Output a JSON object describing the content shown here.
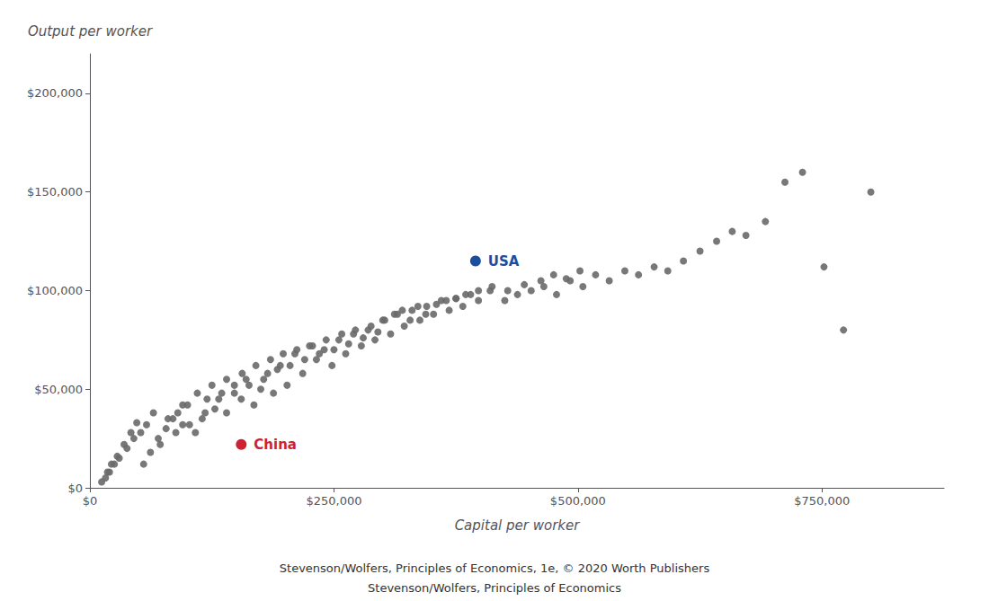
{
  "chart_data": {
    "type": "scatter",
    "xlabel": "Capital per worker",
    "ylabel": "Output per worker",
    "series": [
      {
        "color": "#696969",
        "x": [
          18000,
          22000,
          28000,
          35000,
          42000,
          48000,
          55000,
          62000,
          70000,
          78000,
          85000,
          90000,
          95000,
          100000,
          108000,
          115000,
          120000,
          128000,
          135000,
          140000,
          148000,
          155000,
          160000,
          168000,
          175000,
          182000,
          188000,
          195000,
          202000,
          210000,
          218000,
          225000,
          232000,
          240000,
          248000,
          255000,
          262000,
          270000,
          278000,
          285000,
          292000,
          300000,
          308000,
          315000,
          322000,
          330000,
          338000,
          345000,
          352000,
          360000,
          368000,
          375000,
          382000,
          390000,
          398000,
          410000,
          425000,
          438000,
          452000,
          465000,
          478000,
          492000,
          505000,
          518000,
          532000,
          548000,
          562000,
          578000,
          592000,
          608000,
          625000,
          642000,
          658000,
          672000,
          692000,
          712000,
          730000,
          752000,
          772000,
          800000,
          12000,
          16000,
          20000,
          25000,
          30000,
          38000,
          45000,
          52000,
          58000,
          65000,
          72000,
          80000,
          88000,
          95000,
          102000,
          110000,
          118000,
          125000,
          132000,
          140000,
          148000,
          156000,
          163000,
          170000,
          178000,
          185000,
          192000,
          198000,
          205000,
          212000,
          220000,
          228000,
          235000,
          242000,
          250000,
          258000,
          265000,
          272000,
          280000,
          288000,
          295000,
          302000,
          312000,
          320000,
          328000,
          336000,
          344000,
          355000,
          365000,
          375000,
          385000,
          398000,
          412000,
          428000,
          445000,
          462000,
          475000,
          488000,
          502000
        ],
        "y": [
          8000,
          12000,
          16000,
          22000,
          28000,
          33000,
          12000,
          18000,
          25000,
          30000,
          35000,
          38000,
          32000,
          42000,
          28000,
          35000,
          45000,
          40000,
          48000,
          38000,
          52000,
          45000,
          55000,
          42000,
          50000,
          58000,
          48000,
          62000,
          52000,
          68000,
          58000,
          72000,
          65000,
          70000,
          62000,
          75000,
          68000,
          78000,
          72000,
          80000,
          75000,
          85000,
          78000,
          88000,
          82000,
          90000,
          85000,
          92000,
          88000,
          95000,
          90000,
          96000,
          92000,
          98000,
          95000,
          100000,
          95000,
          98000,
          100000,
          102000,
          98000,
          105000,
          102000,
          108000,
          105000,
          110000,
          108000,
          112000,
          110000,
          115000,
          120000,
          125000,
          130000,
          128000,
          135000,
          155000,
          160000,
          112000,
          80000,
          150000,
          3000,
          5000,
          8000,
          12000,
          15000,
          20000,
          25000,
          28000,
          32000,
          38000,
          22000,
          35000,
          28000,
          42000,
          32000,
          48000,
          38000,
          52000,
          45000,
          55000,
          48000,
          58000,
          52000,
          62000,
          55000,
          65000,
          60000,
          68000,
          62000,
          70000,
          65000,
          72000,
          68000,
          75000,
          70000,
          78000,
          73000,
          80000,
          76000,
          82000,
          79000,
          85000,
          88000,
          90000,
          85000,
          92000,
          88000,
          93000,
          95000,
          96000,
          98000,
          100000,
          102000,
          100000,
          103000,
          105000,
          108000,
          106000,
          110000
        ]
      },
      {
        "name": "USA",
        "color": "#1a4fa0",
        "x": [
          395000
        ],
        "y": [
          115000
        ]
      },
      {
        "name": "China",
        "color": "#cc2233",
        "x": [
          155000
        ],
        "y": [
          22000
        ]
      }
    ],
    "xlim": [
      0,
      875000
    ],
    "ylim": [
      0,
      220000
    ],
    "xticks": [
      {
        "value": 0,
        "label": "$0"
      },
      {
        "value": 250000,
        "label": "$250,000"
      },
      {
        "value": 500000,
        "label": "$500,000"
      },
      {
        "value": 750000,
        "label": "$750,000"
      }
    ],
    "yticks": [
      {
        "value": 0,
        "label": "$0"
      },
      {
        "value": 50000,
        "label": "$50,000"
      },
      {
        "value": 100000,
        "label": "$100,000"
      },
      {
        "value": 150000,
        "label": "$150,000"
      },
      {
        "value": 200000,
        "label": "$200,000"
      }
    ],
    "grid": false,
    "annotations": [
      "Stevenson/Wolfers, Principles of Economics, 1e, © 2020 Worth Publishers",
      "Stevenson/Wolfers, Principles of Economics"
    ]
  }
}
